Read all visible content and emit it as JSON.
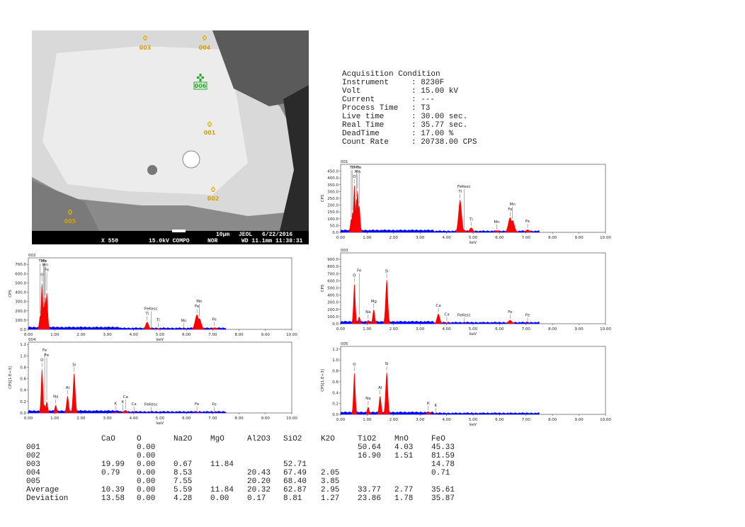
{
  "image": {
    "labels": [
      "003",
      "004",
      "006",
      "001",
      "002",
      "005"
    ],
    "info": [
      "X 550",
      "15.0kV COMPO",
      "NOR",
      "10µm",
      "JEOL",
      "6/22/2016",
      "WD 11.1mm 11:38:31"
    ]
  },
  "acquisition": {
    "title": "Acquisition Condition",
    "rows": [
      [
        "Instrument",
        ": 8230F"
      ],
      [
        "Volt",
        ": 15.00 kV"
      ],
      [
        "Current",
        ": ---"
      ],
      [
        "Process Time",
        ": T3"
      ],
      [
        "Live time",
        ": 30.00 sec."
      ],
      [
        "Real Time",
        ": 35.77 sec."
      ],
      [
        "DeadTime",
        ": 17.00 %"
      ],
      [
        "Count Rate",
        ": 20738.00 CPS"
      ]
    ]
  },
  "chart_data": [
    {
      "type": "area",
      "title": "001",
      "xlabel": "keV",
      "ylabel": "CPS",
      "color": "#ff0000",
      "background_color": "#0000ff",
      "xlim": [
        0,
        10
      ],
      "ylim": [
        0,
        500
      ],
      "xticks": [
        {
          "value": 0,
          "label": "0.00"
        },
        {
          "value": 1,
          "label": "1.00"
        },
        {
          "value": 2,
          "label": "2.00"
        },
        {
          "value": 3,
          "label": "3.00"
        },
        {
          "value": 4,
          "label": "4.00"
        },
        {
          "value": 5,
          "label": "5.00"
        },
        {
          "value": 6,
          "label": "6.00"
        },
        {
          "value": 7,
          "label": "7.00"
        },
        {
          "value": 8,
          "label": "8.00"
        },
        {
          "value": 9,
          "label": "9.00"
        },
        {
          "value": 10,
          "label": "10.00"
        }
      ],
      "yticks": [
        {
          "value": 0,
          "label": "0.0"
        },
        {
          "value": 50,
          "label": "50.0"
        },
        {
          "value": 100,
          "label": "100.0"
        },
        {
          "value": 150,
          "label": "150.0"
        },
        {
          "value": 200,
          "label": "200.0"
        },
        {
          "value": 250,
          "label": "250.0"
        },
        {
          "value": 300,
          "label": "300.0"
        },
        {
          "value": 350,
          "label": "350.0"
        },
        {
          "value": 400,
          "label": "400.0"
        },
        {
          "value": 450,
          "label": "450.0"
        }
      ],
      "peaks": [
        {
          "label": "O",
          "x": 0.52,
          "y": 350
        },
        {
          "label": "Mn",
          "x": 0.64,
          "y": 310
        },
        {
          "label": "Mn",
          "x": 0.6,
          "y": 250
        },
        {
          "label": "Ti",
          "x": 0.45,
          "y": 150
        },
        {
          "label": "Ti",
          "x": 0.4,
          "y": 100
        },
        {
          "label": "Fe",
          "x": 0.7,
          "y": 200
        },
        {
          "label": "Ti",
          "x": 4.51,
          "y": 240
        },
        {
          "label": "FeKesc",
          "x": 4.66,
          "y": 20
        },
        {
          "label": "Ti",
          "x": 4.93,
          "y": 35
        },
        {
          "label": "Mn",
          "x": 5.9,
          "y": 15
        },
        {
          "label": "Fe",
          "x": 6.4,
          "y": 110
        },
        {
          "label": "Mn",
          "x": 6.49,
          "y": 90
        },
        {
          "label": "Fe",
          "x": 7.06,
          "y": 20
        }
      ]
    },
    {
      "type": "area",
      "title": "002",
      "xlabel": "keV",
      "ylabel": "CPS",
      "color": "#ff0000",
      "background_color": "#0000ff",
      "xlim": [
        0,
        10
      ],
      "ylim": [
        0,
        770
      ],
      "xticks": [
        {
          "value": 0,
          "label": "0.00"
        },
        {
          "value": 1,
          "label": "1.00"
        },
        {
          "value": 2,
          "label": "2.00"
        },
        {
          "value": 3,
          "label": "3.00"
        },
        {
          "value": 4,
          "label": "4.00"
        },
        {
          "value": 5,
          "label": "5.00"
        },
        {
          "value": 6,
          "label": "6.00"
        },
        {
          "value": 7,
          "label": "7.00"
        },
        {
          "value": 8,
          "label": "8.00"
        },
        {
          "value": 9,
          "label": "9.00"
        },
        {
          "value": 10,
          "label": "10.00"
        }
      ],
      "yticks": [
        {
          "value": 0,
          "label": "0.0"
        },
        {
          "value": 100,
          "label": "100.0"
        },
        {
          "value": 200,
          "label": "200.0"
        },
        {
          "value": 300,
          "label": "300.0"
        },
        {
          "value": 400,
          "label": "400.0"
        },
        {
          "value": 500,
          "label": "500.0"
        },
        {
          "value": 600,
          "label": "600.0"
        },
        {
          "value": 700,
          "label": "700.0"
        }
      ],
      "peaks": [
        {
          "label": "O",
          "x": 0.52,
          "y": 500
        },
        {
          "label": "Fe",
          "x": 0.7,
          "y": 400
        },
        {
          "label": "Mn",
          "x": 0.64,
          "y": 350
        },
        {
          "label": "Fe",
          "x": 0.62,
          "y": 300
        },
        {
          "label": "Mn",
          "x": 0.58,
          "y": 250
        },
        {
          "label": "Ti",
          "x": 0.45,
          "y": 150
        },
        {
          "label": "Ti",
          "x": 4.51,
          "y": 80
        },
        {
          "label": "FeKesc",
          "x": 4.66,
          "y": 10
        },
        {
          "label": "Ti",
          "x": 4.93,
          "y": 10
        },
        {
          "label": "Mn",
          "x": 5.9,
          "y": 5
        },
        {
          "label": "Fe",
          "x": 6.4,
          "y": 160
        },
        {
          "label": "Mn",
          "x": 6.49,
          "y": 120
        },
        {
          "label": "Fe",
          "x": 7.06,
          "y": 20
        }
      ]
    },
    {
      "type": "area",
      "title": "003",
      "xlabel": "keV",
      "ylabel": "CPS",
      "color": "#ff0000",
      "background_color": "#0000ff",
      "xlim": [
        0,
        10
      ],
      "ylim": [
        0,
        990
      ],
      "xticks": [
        {
          "value": 0,
          "label": "0.00"
        },
        {
          "value": 1,
          "label": "1.00"
        },
        {
          "value": 2,
          "label": "2.00"
        },
        {
          "value": 3,
          "label": "3.00"
        },
        {
          "value": 4,
          "label": "4.00"
        },
        {
          "value": 5,
          "label": "5.00"
        },
        {
          "value": 6,
          "label": "6.00"
        },
        {
          "value": 7,
          "label": "7.00"
        },
        {
          "value": 8,
          "label": "8.00"
        },
        {
          "value": 9,
          "label": "9.00"
        },
        {
          "value": 10,
          "label": "10.00"
        }
      ],
      "yticks": [
        {
          "value": 0,
          "label": "0.0"
        },
        {
          "value": 100,
          "label": "100.0"
        },
        {
          "value": 200,
          "label": "200.0"
        },
        {
          "value": 300,
          "label": "300.0"
        },
        {
          "value": 400,
          "label": "400.0"
        },
        {
          "value": 500,
          "label": "500.0"
        },
        {
          "value": 600,
          "label": "600.0"
        },
        {
          "value": 700,
          "label": "700.0"
        },
        {
          "value": 800,
          "label": "800.0"
        },
        {
          "value": 900,
          "label": "900.0"
        }
      ],
      "peaks": [
        {
          "label": "O",
          "x": 0.52,
          "y": 560
        },
        {
          "label": "Fe",
          "x": 0.7,
          "y": 100
        },
        {
          "label": "Na",
          "x": 1.04,
          "y": 50
        },
        {
          "label": "Mg",
          "x": 1.25,
          "y": 200
        },
        {
          "label": "Si",
          "x": 1.74,
          "y": 620
        },
        {
          "label": "Ca",
          "x": 3.69,
          "y": 140
        },
        {
          "label": "Ca",
          "x": 4.01,
          "y": 15
        },
        {
          "label": "FeKesc",
          "x": 4.66,
          "y": 5
        },
        {
          "label": "Fe",
          "x": 6.4,
          "y": 50
        },
        {
          "label": "Fe",
          "x": 7.06,
          "y": 5
        }
      ]
    },
    {
      "type": "area",
      "title": "004",
      "xlabel": "keV",
      "ylabel": "CPS[1.E+3]",
      "color": "#ff0000",
      "background_color": "#0000ff",
      "xlim": [
        0,
        10
      ],
      "ylim": [
        0,
        1.24
      ],
      "xticks": [
        {
          "value": 0,
          "label": "0.00"
        },
        {
          "value": 1,
          "label": "1.00"
        },
        {
          "value": 2,
          "label": "2.00"
        },
        {
          "value": 3,
          "label": "3.00"
        },
        {
          "value": 4,
          "label": "4.00"
        },
        {
          "value": 5,
          "label": "5.00"
        },
        {
          "value": 6,
          "label": "6.00"
        },
        {
          "value": 7,
          "label": "7.00"
        },
        {
          "value": 8,
          "label": "8.00"
        },
        {
          "value": 9,
          "label": "9.00"
        },
        {
          "value": 10,
          "label": "10.00"
        }
      ],
      "yticks": [
        {
          "value": 0,
          "label": "0.0"
        },
        0.2,
        0.4,
        0.6,
        0.8,
        {
          "value": 1,
          "label": "1.0"
        },
        1.2
      ],
      "peaks": [
        {
          "label": "O",
          "x": 0.52,
          "y": 0.78
        },
        {
          "label": "Fe",
          "x": 0.7,
          "y": 0.2
        },
        {
          "label": "Fe",
          "x": 0.62,
          "y": 0.15
        },
        {
          "label": "Na",
          "x": 1.04,
          "y": 0.14
        },
        {
          "label": "Al",
          "x": 1.49,
          "y": 0.3
        },
        {
          "label": "Si",
          "x": 1.74,
          "y": 0.7
        },
        {
          "label": "K",
          "x": 3.31,
          "y": 0.02
        },
        {
          "label": "K",
          "x": 3.59,
          "y": 0.01
        },
        {
          "label": "Ca",
          "x": 3.69,
          "y": 0.05
        },
        {
          "label": "Ca",
          "x": 4.01,
          "y": 0.01
        },
        {
          "label": "FeKesc",
          "x": 4.66,
          "y": 0.005
        },
        {
          "label": "Fe",
          "x": 6.4,
          "y": 0.01
        },
        {
          "label": "Fe",
          "x": 7.06,
          "y": 0.005
        }
      ]
    },
    {
      "type": "area",
      "title": "005",
      "xlabel": "keV",
      "ylabel": "CPS[1.E+3]",
      "color": "#ff0000",
      "background_color": "#0000ff",
      "xlim": [
        0,
        10
      ],
      "ylim": [
        0,
        1.25
      ],
      "xticks": [
        {
          "value": 0,
          "label": "0.00"
        },
        {
          "value": 1,
          "label": "1.00"
        },
        {
          "value": 2,
          "label": "2.00"
        },
        {
          "value": 3,
          "label": "3.00"
        },
        {
          "value": 4,
          "label": "4.00"
        },
        {
          "value": 5,
          "label": "5.00"
        },
        {
          "value": 6,
          "label": "6.00"
        },
        {
          "value": 7,
          "label": "7.00"
        },
        {
          "value": 8,
          "label": "8.00"
        },
        {
          "value": 9,
          "label": "9.00"
        },
        {
          "value": 10,
          "label": "10.00"
        }
      ],
      "yticks": [
        {
          "value": 0,
          "label": "0.0"
        },
        0.2,
        0.4,
        0.6,
        0.8,
        {
          "value": 1,
          "label": "1.0"
        },
        1.2
      ],
      "peaks": [
        {
          "label": "O",
          "x": 0.52,
          "y": 0.77
        },
        {
          "label": "Na",
          "x": 1.04,
          "y": 0.14
        },
        {
          "label": "Al",
          "x": 1.49,
          "y": 0.34
        },
        {
          "label": "Si",
          "x": 1.74,
          "y": 0.78
        },
        {
          "label": "K",
          "x": 3.31,
          "y": 0.05
        },
        {
          "label": "K",
          "x": 3.59,
          "y": 0.01
        }
      ]
    }
  ],
  "table": {
    "header": [
      "CaO",
      "O",
      "Na2O",
      "MgO",
      "Al2O3",
      "SiO2",
      "K2O",
      "TiO2",
      "MnO",
      "FeO"
    ],
    "rows": [
      [
        "001",
        null,
        "0.00",
        null,
        null,
        null,
        null,
        null,
        "50.64",
        "4.03",
        "45.33"
      ],
      [
        "002",
        null,
        "0.00",
        null,
        null,
        null,
        null,
        null,
        "16.90",
        "1.51",
        "81.59"
      ],
      [
        "003",
        "19.99",
        "0.00",
        "0.67",
        "11.84",
        null,
        "52.71",
        null,
        null,
        null,
        "14.78"
      ],
      [
        "004",
        "0.79",
        "0.00",
        "8.53",
        null,
        "20.43",
        "67.49",
        "2.05",
        null,
        null,
        "0.71"
      ],
      [
        "005",
        null,
        "0.00",
        "7.55",
        null,
        "20.20",
        "68.40",
        "3.85",
        null,
        null,
        null
      ],
      [
        "Average",
        "10.39",
        "0.00",
        "5.59",
        "11.84",
        "20.32",
        "62.87",
        "2.95",
        "33.77",
        "2.77",
        "35.61"
      ],
      [
        "Deviation",
        "13.58",
        "0.00",
        "4.28",
        "0.00",
        "0.17",
        "8.81",
        "1.27",
        "23.86",
        "1.78",
        "35.87"
      ]
    ]
  }
}
